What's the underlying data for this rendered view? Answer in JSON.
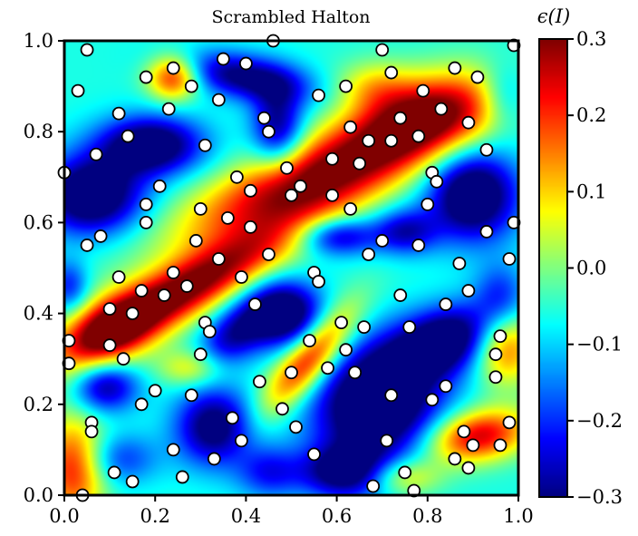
{
  "chart_data": {
    "type": "heatmap",
    "title": "Scrambled Halton",
    "xlabel": "",
    "ylabel": "",
    "xlim": [
      0.0,
      1.0
    ],
    "ylim": [
      0.0,
      1.0
    ],
    "x_ticks": [
      "0.0",
      "0.2",
      "0.4",
      "0.6",
      "0.8",
      "1.0"
    ],
    "y_ticks": [
      "0.0",
      "0.2",
      "0.4",
      "0.6",
      "0.8",
      "1.0"
    ],
    "colorbar": {
      "label": "ϵ(I)",
      "range": [
        -0.3,
        0.3
      ],
      "ticks": [
        "0.3",
        "0.2",
        "0.1",
        "0.0",
        "−0.1",
        "−0.2",
        "−0.3"
      ],
      "colormap": "jet"
    },
    "grid": false,
    "points": [
      [
        0.05,
        0.98
      ],
      [
        0.46,
        1.0
      ],
      [
        0.7,
        0.98
      ],
      [
        0.99,
        0.99
      ],
      [
        0.35,
        0.96
      ],
      [
        0.4,
        0.95
      ],
      [
        0.62,
        0.9
      ],
      [
        0.28,
        0.9
      ],
      [
        0.18,
        0.92
      ],
      [
        0.03,
        0.89
      ],
      [
        0.24,
        0.94
      ],
      [
        0.72,
        0.93
      ],
      [
        0.86,
        0.94
      ],
      [
        0.91,
        0.92
      ],
      [
        0.79,
        0.89
      ],
      [
        0.56,
        0.88
      ],
      [
        0.23,
        0.85
      ],
      [
        0.34,
        0.87
      ],
      [
        0.12,
        0.84
      ],
      [
        0.83,
        0.85
      ],
      [
        0.44,
        0.83
      ],
      [
        0.63,
        0.81
      ],
      [
        0.74,
        0.83
      ],
      [
        0.89,
        0.82
      ],
      [
        0.45,
        0.8
      ],
      [
        0.14,
        0.79
      ],
      [
        0.67,
        0.78
      ],
      [
        0.72,
        0.78
      ],
      [
        0.78,
        0.79
      ],
      [
        0.31,
        0.77
      ],
      [
        0.07,
        0.75
      ],
      [
        0.93,
        0.76
      ],
      [
        0.59,
        0.74
      ],
      [
        0.65,
        0.73
      ],
      [
        0.49,
        0.72
      ],
      [
        0.81,
        0.71
      ],
      [
        0.82,
        0.69
      ],
      [
        0.38,
        0.7
      ],
      [
        0.0,
        0.71
      ],
      [
        0.21,
        0.68
      ],
      [
        0.52,
        0.68
      ],
      [
        0.41,
        0.67
      ],
      [
        0.5,
        0.66
      ],
      [
        0.59,
        0.66
      ],
      [
        0.18,
        0.64
      ],
      [
        0.3,
        0.63
      ],
      [
        0.8,
        0.64
      ],
      [
        0.63,
        0.63
      ],
      [
        0.36,
        0.61
      ],
      [
        0.18,
        0.6
      ],
      [
        0.41,
        0.59
      ],
      [
        0.99,
        0.6
      ],
      [
        0.93,
        0.58
      ],
      [
        0.08,
        0.57
      ],
      [
        0.7,
        0.56
      ],
      [
        0.29,
        0.56
      ],
      [
        0.05,
        0.55
      ],
      [
        0.78,
        0.55
      ],
      [
        0.67,
        0.53
      ],
      [
        0.98,
        0.52
      ],
      [
        0.45,
        0.53
      ],
      [
        0.34,
        0.52
      ],
      [
        0.24,
        0.49
      ],
      [
        0.87,
        0.51
      ],
      [
        0.55,
        0.49
      ],
      [
        0.56,
        0.47
      ],
      [
        0.12,
        0.48
      ],
      [
        0.39,
        0.48
      ],
      [
        0.27,
        0.46
      ],
      [
        0.17,
        0.45
      ],
      [
        0.22,
        0.44
      ],
      [
        0.74,
        0.44
      ],
      [
        0.89,
        0.45
      ],
      [
        0.42,
        0.42
      ],
      [
        0.84,
        0.42
      ],
      [
        0.1,
        0.41
      ],
      [
        0.15,
        0.4
      ],
      [
        0.31,
        0.38
      ],
      [
        0.61,
        0.38
      ],
      [
        0.66,
        0.37
      ],
      [
        0.76,
        0.37
      ],
      [
        0.32,
        0.36
      ],
      [
        0.01,
        0.34
      ],
      [
        0.54,
        0.34
      ],
      [
        0.96,
        0.35
      ],
      [
        0.1,
        0.33
      ],
      [
        0.62,
        0.32
      ],
      [
        0.3,
        0.31
      ],
      [
        0.95,
        0.31
      ],
      [
        0.13,
        0.3
      ],
      [
        0.01,
        0.29
      ],
      [
        0.5,
        0.27
      ],
      [
        0.58,
        0.28
      ],
      [
        0.64,
        0.27
      ],
      [
        0.95,
        0.26
      ],
      [
        0.43,
        0.25
      ],
      [
        0.2,
        0.23
      ],
      [
        0.28,
        0.22
      ],
      [
        0.72,
        0.22
      ],
      [
        0.81,
        0.21
      ],
      [
        0.84,
        0.24
      ],
      [
        0.17,
        0.2
      ],
      [
        0.48,
        0.19
      ],
      [
        0.37,
        0.17
      ],
      [
        0.06,
        0.16
      ],
      [
        0.51,
        0.15
      ],
      [
        0.98,
        0.16
      ],
      [
        0.06,
        0.14
      ],
      [
        0.88,
        0.14
      ],
      [
        0.39,
        0.12
      ],
      [
        0.71,
        0.12
      ],
      [
        0.9,
        0.11
      ],
      [
        0.96,
        0.11
      ],
      [
        0.24,
        0.1
      ],
      [
        0.55,
        0.09
      ],
      [
        0.33,
        0.08
      ],
      [
        0.86,
        0.08
      ],
      [
        0.89,
        0.06
      ],
      [
        0.11,
        0.05
      ],
      [
        0.75,
        0.05
      ],
      [
        0.26,
        0.04
      ],
      [
        0.15,
        0.03
      ],
      [
        0.68,
        0.02
      ],
      [
        0.77,
        0.01
      ],
      [
        0.04,
        0.0
      ]
    ],
    "field_features": [
      {
        "x": 0.26,
        "y": 0.45,
        "a": 0.38,
        "sx": 0.2,
        "sy": 0.045,
        "angle": 28
      },
      {
        "x": 0.56,
        "y": 0.7,
        "a": 0.38,
        "sx": 0.22,
        "sy": 0.06,
        "angle": 22
      },
      {
        "x": 0.8,
        "y": 0.84,
        "a": 0.3,
        "sx": 0.12,
        "sy": 0.06,
        "angle": 15
      },
      {
        "x": 0.1,
        "y": 0.36,
        "a": 0.25,
        "sx": 0.08,
        "sy": 0.05,
        "angle": 30
      },
      {
        "x": 0.54,
        "y": 0.3,
        "a": 0.32,
        "sx": 0.1,
        "sy": 0.035,
        "angle": 50
      },
      {
        "x": 0.24,
        "y": 0.92,
        "a": 0.28,
        "sx": 0.04,
        "sy": 0.035,
        "angle": 0
      },
      {
        "x": 0.91,
        "y": 0.13,
        "a": 0.32,
        "sx": 0.08,
        "sy": 0.04,
        "angle": 10
      },
      {
        "x": 0.97,
        "y": 0.33,
        "a": 0.25,
        "sx": 0.05,
        "sy": 0.06,
        "angle": 0
      },
      {
        "x": 0.02,
        "y": 0.06,
        "a": 0.28,
        "sx": 0.05,
        "sy": 0.08,
        "angle": 0
      },
      {
        "x": 0.74,
        "y": 0.04,
        "a": 0.18,
        "sx": 0.06,
        "sy": 0.03,
        "angle": 0
      },
      {
        "x": 0.28,
        "y": 0.28,
        "a": 0.15,
        "sx": 0.05,
        "sy": 0.03,
        "angle": 0
      },
      {
        "x": 0.68,
        "y": 0.9,
        "a": 0.12,
        "sx": 0.06,
        "sy": 0.04,
        "angle": 0
      },
      {
        "x": 0.06,
        "y": 0.66,
        "a": -0.34,
        "sx": 0.08,
        "sy": 0.06,
        "angle": 0
      },
      {
        "x": 0.19,
        "y": 0.77,
        "a": -0.32,
        "sx": 0.08,
        "sy": 0.045,
        "angle": 0
      },
      {
        "x": 0.4,
        "y": 0.92,
        "a": -0.26,
        "sx": 0.1,
        "sy": 0.035,
        "angle": -10
      },
      {
        "x": 0.47,
        "y": 0.81,
        "a": -0.24,
        "sx": 0.04,
        "sy": 0.06,
        "angle": 0
      },
      {
        "x": 0.9,
        "y": 0.66,
        "a": -0.34,
        "sx": 0.07,
        "sy": 0.07,
        "angle": 0
      },
      {
        "x": 0.75,
        "y": 0.58,
        "a": -0.2,
        "sx": 0.05,
        "sy": 0.035,
        "angle": 0
      },
      {
        "x": 0.6,
        "y": 0.57,
        "a": -0.22,
        "sx": 0.06,
        "sy": 0.03,
        "angle": 0
      },
      {
        "x": 0.48,
        "y": 0.4,
        "a": -0.34,
        "sx": 0.06,
        "sy": 0.05,
        "angle": 0
      },
      {
        "x": 0.37,
        "y": 0.35,
        "a": -0.2,
        "sx": 0.06,
        "sy": 0.04,
        "angle": 40
      },
      {
        "x": 0.84,
        "y": 0.34,
        "a": -0.32,
        "sx": 0.09,
        "sy": 0.05,
        "angle": 20
      },
      {
        "x": 0.69,
        "y": 0.2,
        "a": -0.38,
        "sx": 0.1,
        "sy": 0.09,
        "angle": 30
      },
      {
        "x": 0.62,
        "y": 0.05,
        "a": -0.26,
        "sx": 0.07,
        "sy": 0.04,
        "angle": 0
      },
      {
        "x": 0.09,
        "y": 0.24,
        "a": -0.24,
        "sx": 0.05,
        "sy": 0.04,
        "angle": 0
      },
      {
        "x": 0.33,
        "y": 0.15,
        "a": -0.28,
        "sx": 0.06,
        "sy": 0.06,
        "angle": 0
      },
      {
        "x": 0.12,
        "y": 0.08,
        "a": -0.14,
        "sx": 0.06,
        "sy": 0.04,
        "angle": 0
      },
      {
        "x": 0.96,
        "y": 0.44,
        "a": -0.14,
        "sx": 0.04,
        "sy": 0.05,
        "angle": 0
      },
      {
        "x": 0.01,
        "y": 0.46,
        "a": -0.16,
        "sx": 0.03,
        "sy": 0.04,
        "angle": 0
      },
      {
        "x": 0.45,
        "y": 0.05,
        "a": -0.15,
        "sx": 0.05,
        "sy": 0.04,
        "angle": 0
      },
      {
        "x": 0.97,
        "y": 0.88,
        "a": -0.14,
        "sx": 0.04,
        "sy": 0.05,
        "angle": 0
      }
    ]
  }
}
